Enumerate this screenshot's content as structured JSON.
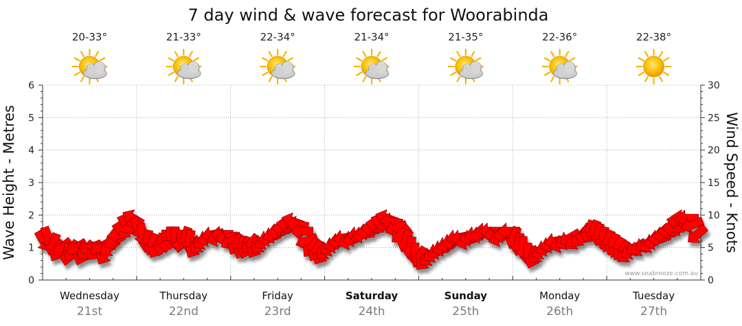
{
  "colors": {
    "arrow": "#ff0000",
    "arrow_stroke": "#990000",
    "grid": "#999999",
    "sun": "#f7b500",
    "cloud": "#b4b4b4"
  },
  "chart_data": {
    "type": "line",
    "title": "7 day wind & wave forecast for Woorabinda",
    "ylabel_left": "Wave Height - Metres",
    "ylabel_right": "Wind Speed - Knots",
    "ylim_left": [
      0,
      6
    ],
    "ylim_right": [
      0,
      30
    ],
    "yticks_left": [
      "0",
      "1",
      "2",
      "3",
      "4",
      "5",
      "6"
    ],
    "yticks_right": [
      "0",
      "5",
      "10",
      "15",
      "20",
      "25",
      "30"
    ],
    "grid": true,
    "watermark": "www.seabreeze.com.au",
    "days": [
      {
        "name": "Wednesday",
        "date": "21st",
        "temp": "20-33°",
        "icon": "sun-cloud-icon",
        "bold": false
      },
      {
        "name": "Thursday",
        "date": "22nd",
        "temp": "21-33°",
        "icon": "sun-cloud-icon",
        "bold": false
      },
      {
        "name": "Friday",
        "date": "23rd",
        "temp": "22-34°",
        "icon": "sun-cloud-icon",
        "bold": false
      },
      {
        "name": "Saturday",
        "date": "24th",
        "temp": "21-34°",
        "icon": "sun-cloud-icon",
        "bold": true
      },
      {
        "name": "Sunday",
        "date": "25th",
        "temp": "21-35°",
        "icon": "sun-cloud-icon",
        "bold": true
      },
      {
        "name": "Monday",
        "date": "26th",
        "temp": "22-36°",
        "icon": "sun-cloud-icon",
        "bold": false
      },
      {
        "name": "Tuesday",
        "date": "27th",
        "temp": "22-38°",
        "icon": "sun-icon",
        "bold": false
      }
    ],
    "wind_series": {
      "name": "Wind Speed",
      "x_unit": "days",
      "points": [
        [
          0.02,
          6,
          60
        ],
        [
          0.12,
          6.5,
          70
        ],
        [
          0.22,
          5.5,
          110
        ],
        [
          0.32,
          4.5,
          120
        ],
        [
          0.42,
          5,
          140
        ],
        [
          0.52,
          4,
          100
        ],
        [
          0.62,
          4.5,
          120
        ],
        [
          0.72,
          5,
          150
        ],
        [
          0.82,
          4,
          110
        ],
        [
          0.92,
          4.5,
          130
        ],
        [
          1.02,
          5,
          160
        ],
        [
          1.12,
          4.5,
          130
        ],
        [
          1.22,
          5,
          150
        ],
        [
          1.32,
          4,
          120
        ],
        [
          1.42,
          5,
          140
        ],
        [
          1.52,
          6,
          150
        ],
        [
          1.62,
          7,
          170
        ],
        [
          1.72,
          8,
          190
        ],
        [
          1.82,
          9,
          200
        ],
        [
          1.92,
          9.5,
          210
        ],
        [
          2.02,
          8,
          70
        ],
        [
          2.12,
          7,
          80
        ],
        [
          2.22,
          6,
          100
        ],
        [
          2.32,
          5.5,
          110
        ],
        [
          2.42,
          5,
          120
        ],
        [
          2.52,
          5.5,
          100
        ],
        [
          2.62,
          6,
          90
        ],
        [
          2.72,
          6.5,
          90
        ],
        [
          2.82,
          6.5,
          90
        ],
        [
          2.92,
          6,
          100
        ],
        [
          3.02,
          6.5,
          110
        ],
        [
          3.12,
          6,
          100
        ],
        [
          3.22,
          5,
          120
        ],
        [
          3.32,
          5.5,
          130
        ],
        [
          3.42,
          6,
          150
        ],
        [
          3.52,
          6.5,
          160
        ],
        [
          3.62,
          7,
          170
        ],
        [
          3.72,
          6.5,
          160
        ],
        [
          3.82,
          7,
          180
        ],
        [
          3.92,
          6.5,
          170
        ],
        [
          4.02,
          6,
          150
        ],
        [
          4.12,
          5.5,
          120
        ],
        [
          4.22,
          5,
          110
        ],
        [
          4.32,
          5,
          110
        ],
        [
          4.42,
          5.5,
          130
        ],
        [
          4.52,
          5,
          120
        ],
        [
          4.62,
          5.5,
          130
        ],
        [
          4.72,
          6,
          150
        ],
        [
          4.82,
          6.5,
          160
        ],
        [
          4.92,
          7,
          160
        ],
        [
          5.02,
          7.5,
          170
        ],
        [
          5.12,
          8,
          180
        ],
        [
          5.22,
          8.5,
          190
        ],
        [
          5.32,
          9,
          200
        ],
        [
          5.42,
          8.5,
          190
        ],
        [
          5.52,
          7.5,
          180
        ],
        [
          5.62,
          6,
          160
        ],
        [
          5.72,
          5,
          130
        ],
        [
          5.82,
          4.5,
          120
        ],
        [
          5.92,
          4,
          120
        ],
        [
          6.02,
          4.5,
          140
        ],
        [
          6.12,
          5,
          150
        ],
        [
          6.22,
          5.5,
          160
        ],
        [
          6.32,
          6,
          170
        ],
        [
          6.42,
          6.5,
          170
        ],
        [
          6.52,
          6,
          160
        ],
        [
          6.62,
          6.5,
          160
        ],
        [
          6.72,
          7,
          170
        ],
        [
          6.82,
          7,
          170
        ],
        [
          6.92,
          7.5,
          170
        ],
        [
          7.02,
          8,
          180
        ],
        [
          7.12,
          8.5,
          190
        ],
        [
          7.22,
          9,
          200
        ],
        [
          7.32,
          9.5,
          200
        ],
        [
          7.42,
          9,
          190
        ],
        [
          7.52,
          8,
          160
        ],
        [
          7.62,
          7,
          140
        ],
        [
          7.72,
          6,
          110
        ],
        [
          7.82,
          5,
          100
        ],
        [
          7.92,
          4,
          90
        ],
        [
          8.02,
          3.5,
          120
        ],
        [
          8.12,
          3,
          130
        ],
        [
          8.22,
          3.5,
          140
        ],
        [
          8.32,
          4,
          150
        ],
        [
          8.42,
          4.5,
          160
        ],
        [
          8.52,
          5,
          160
        ],
        [
          8.62,
          5.5,
          160
        ],
        [
          8.72,
          6,
          160
        ],
        [
          8.82,
          6.5,
          170
        ],
        [
          8.92,
          6.5,
          170
        ],
        [
          9.02,
          6,
          160
        ],
        [
          9.12,
          6.5,
          170
        ],
        [
          9.22,
          7,
          170
        ],
        [
          9.32,
          7,
          170
        ],
        [
          9.42,
          7.5,
          180
        ],
        [
          9.52,
          7.5,
          180
        ],
        [
          9.62,
          7,
          170
        ],
        [
          9.72,
          6.5,
          160
        ],
        [
          9.82,
          7,
          170
        ],
        [
          9.92,
          7.5,
          180
        ],
        [
          10.02,
          6.5,
          110
        ],
        [
          10.12,
          5.5,
          100
        ],
        [
          10.22,
          5,
          90
        ],
        [
          10.32,
          4,
          90
        ],
        [
          10.42,
          3.5,
          110
        ],
        [
          10.52,
          4,
          130
        ],
        [
          10.62,
          4.5,
          150
        ],
        [
          10.72,
          5,
          160
        ],
        [
          10.82,
          5.5,
          160
        ],
        [
          10.92,
          6,
          170
        ],
        [
          11.02,
          5.5,
          160
        ],
        [
          11.12,
          6,
          150
        ],
        [
          11.22,
          6.5,
          150
        ],
        [
          11.32,
          6,
          140
        ],
        [
          11.42,
          6.5,
          130
        ],
        [
          11.52,
          7,
          120
        ],
        [
          11.62,
          7.5,
          110
        ],
        [
          11.72,
          7.5,
          110
        ],
        [
          11.82,
          7,
          100
        ],
        [
          11.92,
          6.5,
          100
        ],
        [
          12.02,
          6,
          110
        ],
        [
          12.12,
          5.5,
          110
        ],
        [
          12.22,
          5,
          120
        ],
        [
          12.32,
          4.5,
          130
        ],
        [
          12.42,
          4,
          140
        ],
        [
          12.52,
          4.5,
          150
        ],
        [
          12.62,
          5,
          150
        ],
        [
          12.72,
          5,
          150
        ],
        [
          12.82,
          5.5,
          150
        ],
        [
          12.92,
          5.5,
          150
        ],
        [
          13.02,
          6,
          160
        ],
        [
          13.12,
          6.5,
          170
        ],
        [
          13.22,
          7,
          170
        ],
        [
          13.32,
          7.5,
          180
        ],
        [
          13.42,
          8,
          180
        ],
        [
          13.52,
          9,
          190
        ],
        [
          13.62,
          9.5,
          190
        ],
        [
          13.72,
          9.5,
          180
        ],
        [
          13.82,
          8.5,
          160
        ],
        [
          13.92,
          7,
          140
        ]
      ]
    }
  }
}
